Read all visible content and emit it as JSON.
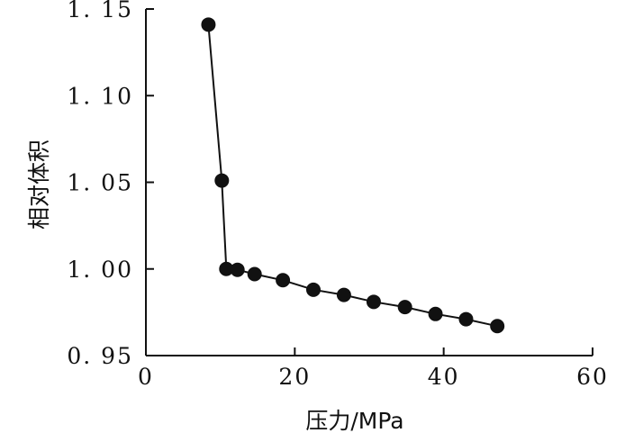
{
  "chart_data": {
    "type": "scatter",
    "title": "",
    "xlabel": "压力/MPa",
    "ylabel": "相对体积",
    "xlim": [
      0,
      60
    ],
    "ylim": [
      0.95,
      1.15
    ],
    "x_ticks": [
      0,
      20,
      40,
      60
    ],
    "x_tick_labels": [
      "0",
      "20",
      "40",
      "60"
    ],
    "y_ticks": [
      0.95,
      1.0,
      1.05,
      1.1,
      1.15
    ],
    "y_tick_labels": [
      "0. 95",
      "1. 00",
      "1. 05",
      "1. 10",
      "1. 15"
    ],
    "grid": false,
    "legend": "none",
    "colors": {
      "axis": "#111111",
      "series": "#111111",
      "background": "#ffffff"
    },
    "series": [
      {
        "points": [
          {
            "x": 8.4,
            "y": 1.141
          },
          {
            "x": 10.2,
            "y": 1.051
          },
          {
            "x": 10.8,
            "y": 1.0
          },
          {
            "x": 12.3,
            "y": 0.9995
          },
          {
            "x": 14.6,
            "y": 0.997
          },
          {
            "x": 18.4,
            "y": 0.9935
          },
          {
            "x": 22.5,
            "y": 0.988
          },
          {
            "x": 26.6,
            "y": 0.985
          },
          {
            "x": 30.6,
            "y": 0.981
          },
          {
            "x": 34.8,
            "y": 0.978
          },
          {
            "x": 38.9,
            "y": 0.974
          },
          {
            "x": 43.0,
            "y": 0.971
          },
          {
            "x": 47.2,
            "y": 0.967
          }
        ]
      }
    ]
  }
}
